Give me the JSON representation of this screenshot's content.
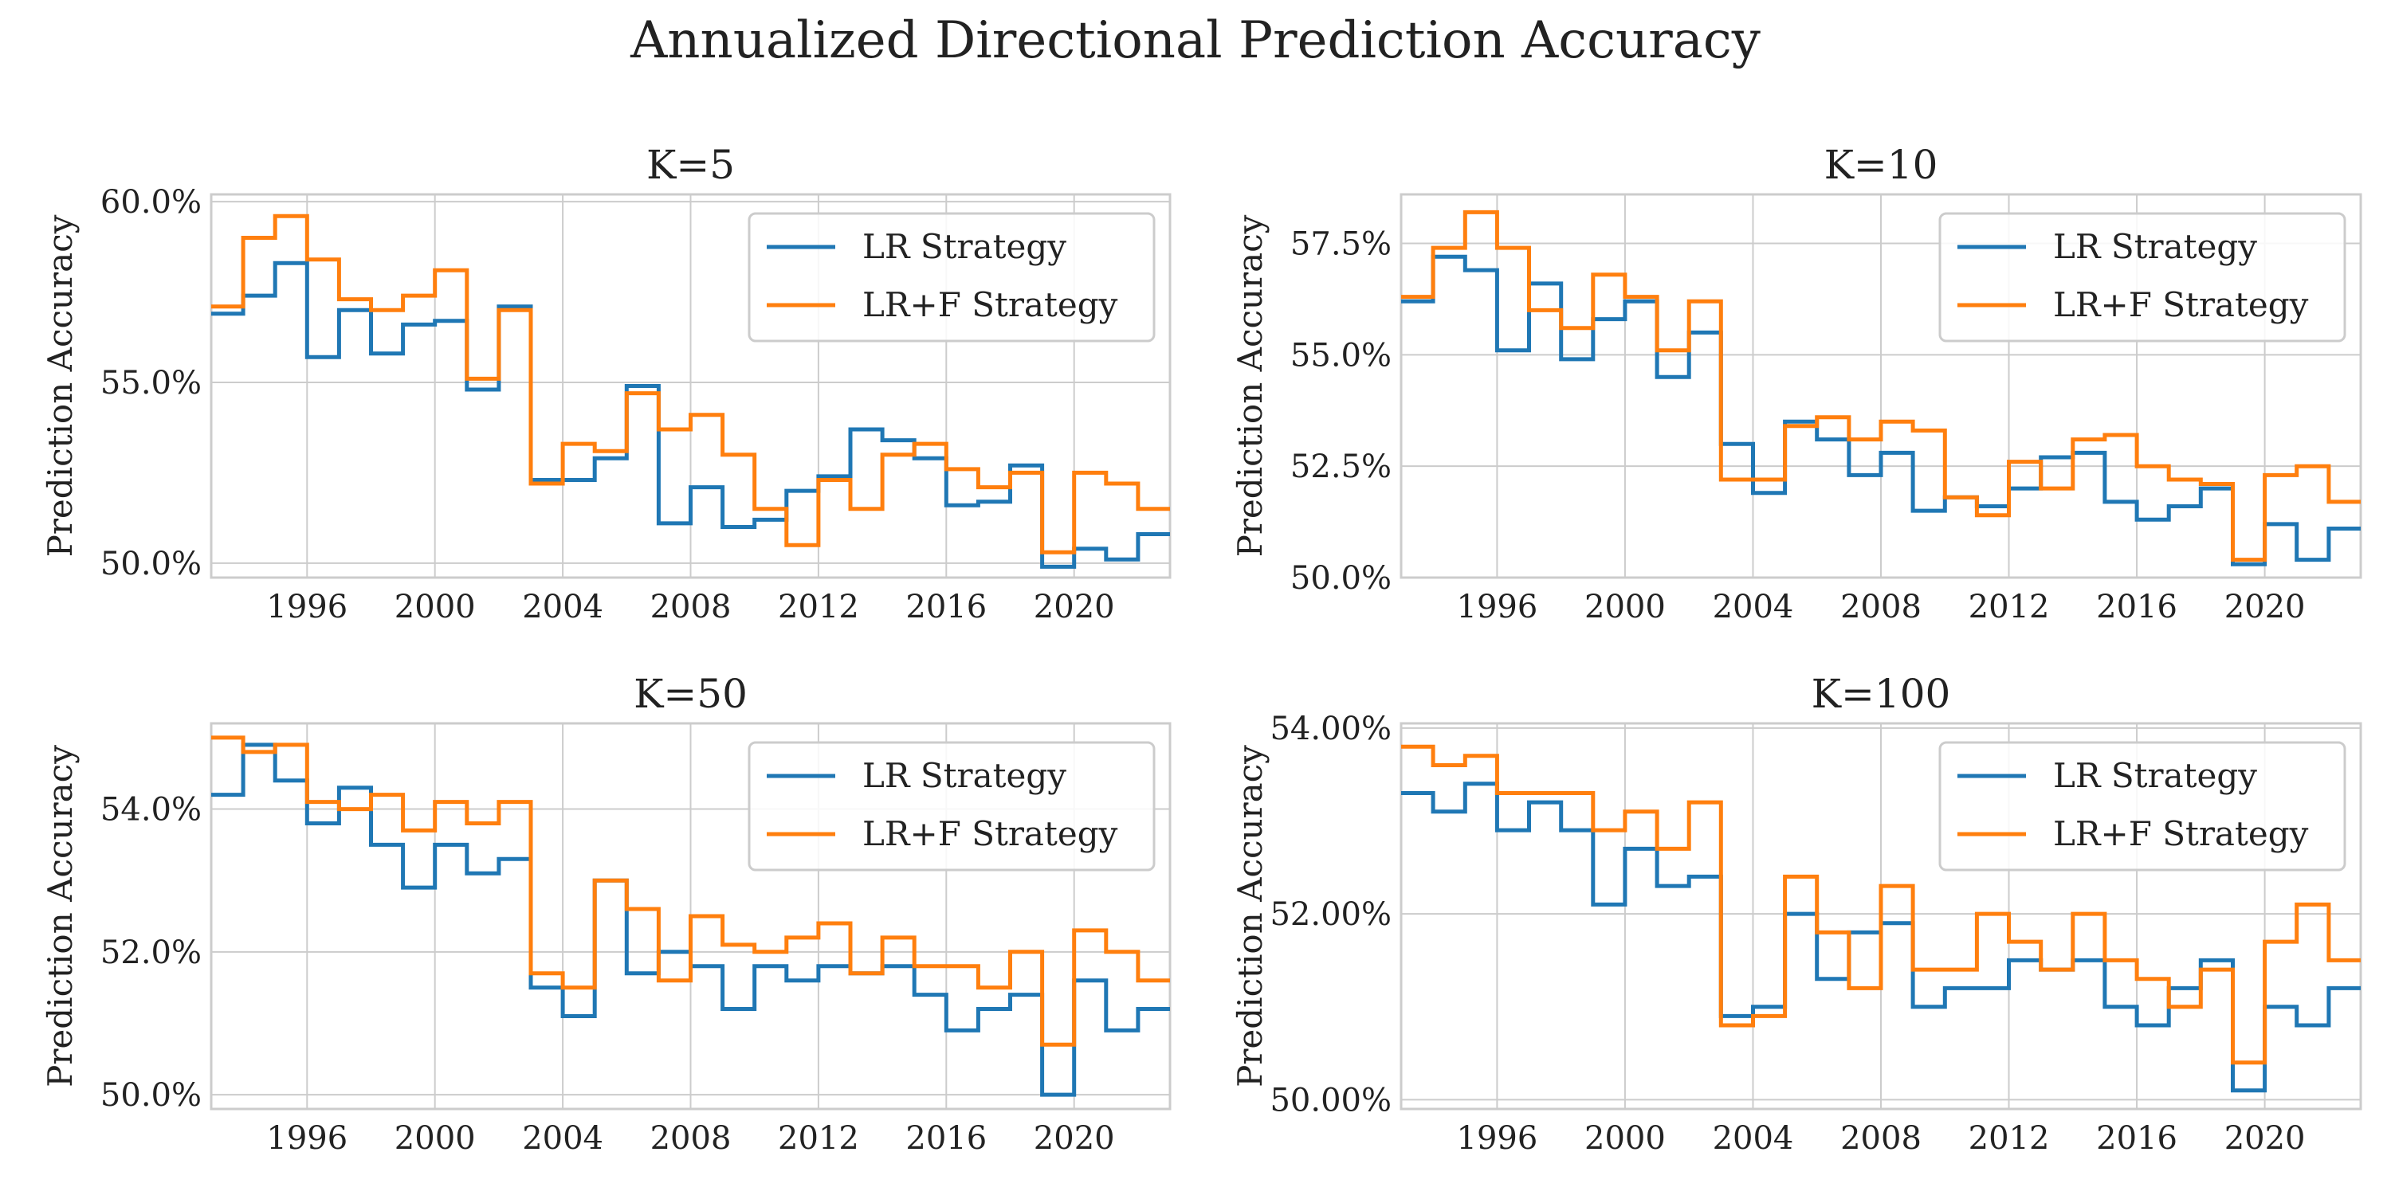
{
  "title": "Annualized Directional Prediction Accuracy",
  "colors": {
    "LR Strategy": "#1f77b4",
    "LR+F Strategy": "#ff7f0e",
    "grid": "#cccccc"
  },
  "chart_data": [
    {
      "type": "line",
      "step": "post",
      "title": "K=5",
      "ylabel": "Prediction Accuracy",
      "xlabel": "",
      "x": [
        1993,
        1994,
        1995,
        1996,
        1997,
        1998,
        1999,
        2000,
        2001,
        2002,
        2003,
        2004,
        2005,
        2006,
        2007,
        2008,
        2009,
        2010,
        2011,
        2012,
        2013,
        2014,
        2015,
        2016,
        2017,
        2018,
        2019,
        2020,
        2021,
        2022
      ],
      "xlim": [
        1993,
        2023
      ],
      "xticks": [
        1996,
        2000,
        2004,
        2008,
        2012,
        2016,
        2020
      ],
      "ylim": [
        49.6,
        60.2
      ],
      "yticks": [
        50.0,
        55.0,
        60.0
      ],
      "ytick_labels": [
        "50.0%",
        "55.0%",
        "60.0%"
      ],
      "legend": "top-right",
      "grid": true,
      "series": [
        {
          "name": "LR Strategy",
          "values": [
            56.9,
            57.4,
            58.3,
            55.7,
            57.0,
            55.8,
            56.6,
            56.7,
            54.8,
            57.1,
            52.3,
            52.3,
            52.9,
            54.9,
            51.1,
            52.1,
            51.0,
            51.2,
            52.0,
            52.4,
            53.7,
            53.4,
            52.9,
            51.6,
            51.7,
            52.7,
            49.9,
            50.4,
            50.1,
            50.8
          ]
        },
        {
          "name": "LR+F Strategy",
          "values": [
            57.1,
            59.0,
            59.6,
            58.4,
            57.3,
            57.0,
            57.4,
            58.1,
            55.1,
            57.0,
            52.2,
            53.3,
            53.1,
            54.7,
            53.7,
            54.1,
            53.0,
            51.5,
            50.5,
            52.3,
            51.5,
            53.0,
            53.3,
            52.6,
            52.1,
            52.5,
            50.3,
            52.5,
            52.2,
            51.5
          ]
        }
      ]
    },
    {
      "type": "line",
      "step": "post",
      "title": "K=10",
      "ylabel": "Prediction Accuracy",
      "xlabel": "",
      "x": [
        1993,
        1994,
        1995,
        1996,
        1997,
        1998,
        1999,
        2000,
        2001,
        2002,
        2003,
        2004,
        2005,
        2006,
        2007,
        2008,
        2009,
        2010,
        2011,
        2012,
        2013,
        2014,
        2015,
        2016,
        2017,
        2018,
        2019,
        2020,
        2021,
        2022
      ],
      "xlim": [
        1993,
        2023
      ],
      "xticks": [
        1996,
        2000,
        2004,
        2008,
        2012,
        2016,
        2020
      ],
      "ylim": [
        50.0,
        58.6
      ],
      "yticks": [
        50.0,
        52.5,
        55.0,
        57.5
      ],
      "ytick_labels": [
        "50.0%",
        "52.5%",
        "55.0%",
        "57.5%"
      ],
      "legend": "top-right",
      "grid": true,
      "series": [
        {
          "name": "LR Strategy",
          "values": [
            56.2,
            57.2,
            56.9,
            55.1,
            56.6,
            54.9,
            55.8,
            56.2,
            54.5,
            55.5,
            53.0,
            51.9,
            53.5,
            53.1,
            52.3,
            52.8,
            51.5,
            51.8,
            51.6,
            52.0,
            52.7,
            52.8,
            51.7,
            51.3,
            51.6,
            52.0,
            50.3,
            51.2,
            50.4,
            51.1
          ]
        },
        {
          "name": "LR+F Strategy",
          "values": [
            56.3,
            57.4,
            58.2,
            57.4,
            56.0,
            55.6,
            56.8,
            56.3,
            55.1,
            56.2,
            52.2,
            52.2,
            53.4,
            53.6,
            53.1,
            53.5,
            53.3,
            51.8,
            51.4,
            52.6,
            52.0,
            53.1,
            53.2,
            52.5,
            52.2,
            52.1,
            50.4,
            52.3,
            52.5,
            51.7
          ]
        }
      ]
    },
    {
      "type": "line",
      "step": "post",
      "title": "K=50",
      "ylabel": "Prediction Accuracy",
      "xlabel": "",
      "x": [
        1993,
        1994,
        1995,
        1996,
        1997,
        1998,
        1999,
        2000,
        2001,
        2002,
        2003,
        2004,
        2005,
        2006,
        2007,
        2008,
        2009,
        2010,
        2011,
        2012,
        2013,
        2014,
        2015,
        2016,
        2017,
        2018,
        2019,
        2020,
        2021,
        2022
      ],
      "xlim": [
        1993,
        2023
      ],
      "xticks": [
        1996,
        2000,
        2004,
        2008,
        2012,
        2016,
        2020
      ],
      "ylim": [
        49.8,
        55.2
      ],
      "yticks": [
        50.0,
        52.0,
        54.0
      ],
      "ytick_labels": [
        "50.0%",
        "52.0%",
        "54.0%"
      ],
      "legend": "top-right",
      "grid": true,
      "series": [
        {
          "name": "LR Strategy",
          "values": [
            54.2,
            54.9,
            54.4,
            53.8,
            54.3,
            53.5,
            52.9,
            53.5,
            53.1,
            53.3,
            51.5,
            51.1,
            53.0,
            51.7,
            52.0,
            51.8,
            51.2,
            51.8,
            51.6,
            51.8,
            51.7,
            51.8,
            51.4,
            50.9,
            51.2,
            51.4,
            50.0,
            51.6,
            50.9,
            51.2
          ]
        },
        {
          "name": "LR+F Strategy",
          "values": [
            55.0,
            54.8,
            54.9,
            54.1,
            54.0,
            54.2,
            53.7,
            54.1,
            53.8,
            54.1,
            51.7,
            51.5,
            53.0,
            52.6,
            51.6,
            52.5,
            52.1,
            52.0,
            52.2,
            52.4,
            51.7,
            52.2,
            51.8,
            51.8,
            51.5,
            52.0,
            50.7,
            52.3,
            52.0,
            51.6
          ]
        }
      ]
    },
    {
      "type": "line",
      "step": "post",
      "title": "K=100",
      "ylabel": "Prediction Accuracy",
      "xlabel": "",
      "x": [
        1993,
        1994,
        1995,
        1996,
        1997,
        1998,
        1999,
        2000,
        2001,
        2002,
        2003,
        2004,
        2005,
        2006,
        2007,
        2008,
        2009,
        2010,
        2011,
        2012,
        2013,
        2014,
        2015,
        2016,
        2017,
        2018,
        2019,
        2020,
        2021,
        2022
      ],
      "xlim": [
        1993,
        2023
      ],
      "xticks": [
        1996,
        2000,
        2004,
        2008,
        2012,
        2016,
        2020
      ],
      "ylim": [
        49.9,
        54.05
      ],
      "yticks": [
        50.0,
        52.0,
        54.0
      ],
      "ytick_labels": [
        "50.00%",
        "52.00%",
        "54.00%"
      ],
      "legend": "top-right",
      "grid": true,
      "series": [
        {
          "name": "LR Strategy",
          "values": [
            53.3,
            53.1,
            53.4,
            52.9,
            53.2,
            52.9,
            52.1,
            52.7,
            52.3,
            52.4,
            50.9,
            51.0,
            52.0,
            51.3,
            51.8,
            51.9,
            51.0,
            51.2,
            51.2,
            51.5,
            51.4,
            51.5,
            51.0,
            50.8,
            51.2,
            51.5,
            50.1,
            51.0,
            50.8,
            51.2
          ]
        },
        {
          "name": "LR+F Strategy",
          "values": [
            53.8,
            53.6,
            53.7,
            53.3,
            53.3,
            53.3,
            52.9,
            53.1,
            52.7,
            53.2,
            50.8,
            50.9,
            52.4,
            51.8,
            51.2,
            52.3,
            51.4,
            51.4,
            52.0,
            51.7,
            51.4,
            52.0,
            51.5,
            51.3,
            51.0,
            51.4,
            50.4,
            51.7,
            52.1,
            51.5
          ]
        }
      ]
    }
  ]
}
